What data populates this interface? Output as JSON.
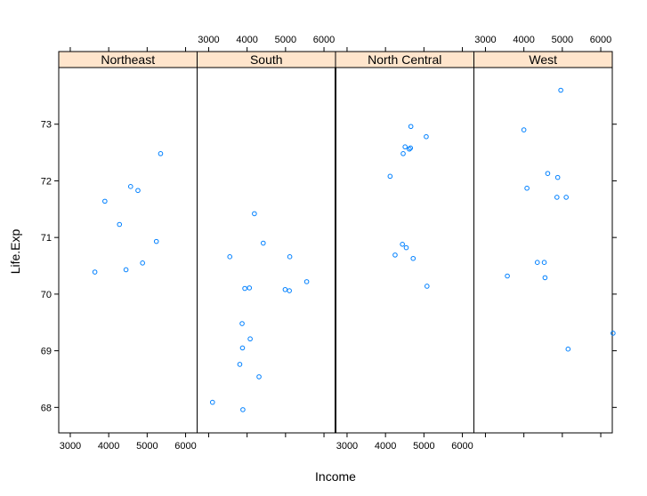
{
  "chart_data": {
    "type": "scatter",
    "xlabel": "Income",
    "ylabel": "Life.Exp",
    "x_ticks": [
      3000,
      4000,
      5000,
      6000
    ],
    "y_ticks": [
      68,
      69,
      70,
      71,
      72,
      73
    ],
    "xlim": [
      2700,
      6300
    ],
    "ylim": [
      67.55,
      74.0
    ],
    "panels": [
      {
        "name": "Northeast",
        "points": [
          {
            "x": 3640,
            "y": 70.39
          },
          {
            "x": 3900,
            "y": 71.64
          },
          {
            "x": 4280,
            "y": 71.23
          },
          {
            "x": 4450,
            "y": 70.43
          },
          {
            "x": 4570,
            "y": 71.9
          },
          {
            "x": 4760,
            "y": 71.83
          },
          {
            "x": 4880,
            "y": 70.55
          },
          {
            "x": 5240,
            "y": 70.93
          },
          {
            "x": 5350,
            "y": 72.48
          }
        ]
      },
      {
        "name": "South",
        "points": [
          {
            "x": 3100,
            "y": 68.09
          },
          {
            "x": 3550,
            "y": 70.66
          },
          {
            "x": 3810,
            "y": 68.76
          },
          {
            "x": 3870,
            "y": 69.48
          },
          {
            "x": 3880,
            "y": 69.05
          },
          {
            "x": 3890,
            "y": 67.96
          },
          {
            "x": 3940,
            "y": 70.1
          },
          {
            "x": 4060,
            "y": 70.11
          },
          {
            "x": 4080,
            "y": 69.21
          },
          {
            "x": 4190,
            "y": 71.42
          },
          {
            "x": 4310,
            "y": 68.54
          },
          {
            "x": 4420,
            "y": 70.9
          },
          {
            "x": 4990,
            "y": 70.08
          },
          {
            "x": 5100,
            "y": 70.06
          },
          {
            "x": 5110,
            "y": 70.66
          },
          {
            "x": 5550,
            "y": 70.22
          }
        ]
      },
      {
        "name": "North Central",
        "points": [
          {
            "x": 4120,
            "y": 72.08
          },
          {
            "x": 4250,
            "y": 70.69
          },
          {
            "x": 4440,
            "y": 70.88
          },
          {
            "x": 4460,
            "y": 72.48
          },
          {
            "x": 4510,
            "y": 72.6
          },
          {
            "x": 4540,
            "y": 70.82
          },
          {
            "x": 4620,
            "y": 72.56
          },
          {
            "x": 4650,
            "y": 72.58
          },
          {
            "x": 4660,
            "y": 72.96
          },
          {
            "x": 4720,
            "y": 70.63
          },
          {
            "x": 5060,
            "y": 72.78
          },
          {
            "x": 5080,
            "y": 70.14
          }
        ]
      },
      {
        "name": "West",
        "points": [
          {
            "x": 3570,
            "y": 70.32
          },
          {
            "x": 4000,
            "y": 72.9
          },
          {
            "x": 4080,
            "y": 71.87
          },
          {
            "x": 4350,
            "y": 70.56
          },
          {
            "x": 4530,
            "y": 70.56
          },
          {
            "x": 4550,
            "y": 70.29
          },
          {
            "x": 4620,
            "y": 72.13
          },
          {
            "x": 4860,
            "y": 71.71
          },
          {
            "x": 4880,
            "y": 72.06
          },
          {
            "x": 4960,
            "y": 73.6
          },
          {
            "x": 5100,
            "y": 71.71
          },
          {
            "x": 5150,
            "y": 69.03
          },
          {
            "x": 6320,
            "y": 69.31
          }
        ]
      }
    ],
    "strip_color": "#ffe5cc",
    "point_color": "#0080ff",
    "grid": false
  }
}
